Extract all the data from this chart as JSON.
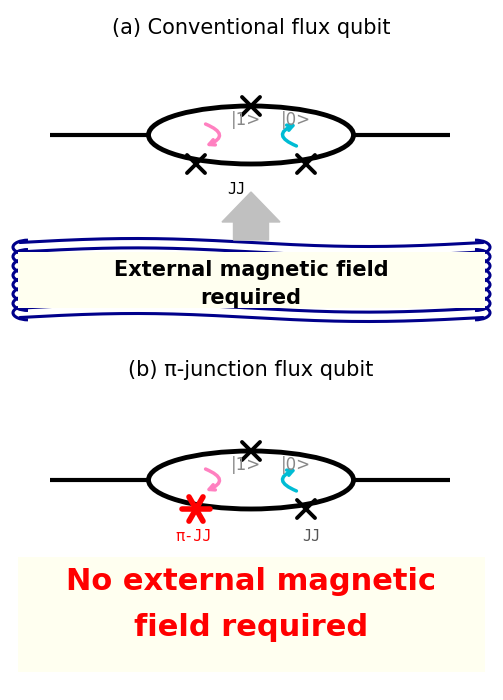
{
  "title_a": "(a) Conventional flux qubit",
  "title_b": "(b) π-junction flux qubit",
  "label_1": "|1>",
  "label_0": "|0>",
  "jj_label": "JJ",
  "pi_jj_label": "π-JJ",
  "ext_field_text1": "External magnetic field",
  "ext_field_text2": "required",
  "no_field_text1": "No external magnetic",
  "no_field_text2": "field required",
  "bg_color": "#ffffff",
  "coil_color": "#00008b",
  "yellow_bg": "#fffff0",
  "red_color": "#ff0000",
  "pink_color": "#ff80c0",
  "cyan_color": "#00bcd4",
  "black": "#000000",
  "gray_arrow": "#c0c0c0",
  "dark_gray": "#555555",
  "title_fontsize": 15,
  "label_fontsize": 12,
  "jj_fontsize": 11,
  "coil_text_fontsize": 15,
  "no_field_fontsize": 22
}
